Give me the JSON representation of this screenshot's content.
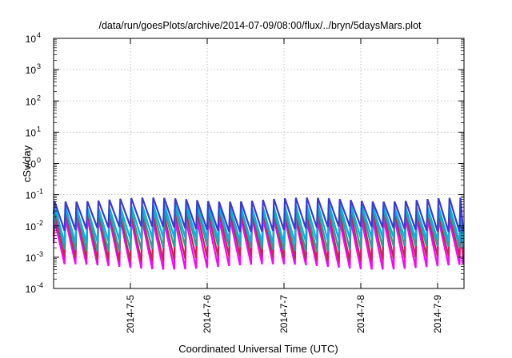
{
  "chart_data": {
    "type": "line",
    "title": "/data/run/goesPlots/archive/2014-07-09/08:00/flux/../bryn/5daysMars.plot",
    "xlabel": "Coordinated Universal Time (UTC)",
    "ylabel": "cSv/day",
    "yscale": "log",
    "ylim": [
      0.0001,
      10000
    ],
    "y_ticks": [
      {
        "base": "10",
        "exp": "-4"
      },
      {
        "base": "10",
        "exp": "-3"
      },
      {
        "base": "10",
        "exp": "-2"
      },
      {
        "base": "10",
        "exp": "-1"
      },
      {
        "base": "10",
        "exp": "0"
      },
      {
        "base": "10",
        "exp": "1"
      },
      {
        "base": "10",
        "exp": "2"
      },
      {
        "base": "10",
        "exp": "3"
      },
      {
        "base": "10",
        "exp": "4"
      }
    ],
    "x_ticks": [
      "2014-7-5",
      "2014-7-6",
      "2014-7-7",
      "2014-7-8",
      "2014-7-9"
    ],
    "xlim": [
      "2014-07-04 00:00",
      "2014-07-09 08:00"
    ],
    "grid": true,
    "waveform": {
      "cycles_per_day": 7,
      "start_day": 0,
      "end_day": 5.333
    },
    "series": [
      {
        "color": "#ff00ff",
        "peak": 0.016,
        "trough": 0.0005
      },
      {
        "color": "#cc2255",
        "peak": 0.025,
        "trough": 0.0009
      },
      {
        "color": "#1fa39a",
        "peak": 0.035,
        "trough": 0.0019
      },
      {
        "color": "#00b4e6",
        "peak": 0.045,
        "trough": 0.0035
      },
      {
        "color": "#3a3ad8",
        "peak": 0.07,
        "trough": 0.008
      }
    ]
  }
}
